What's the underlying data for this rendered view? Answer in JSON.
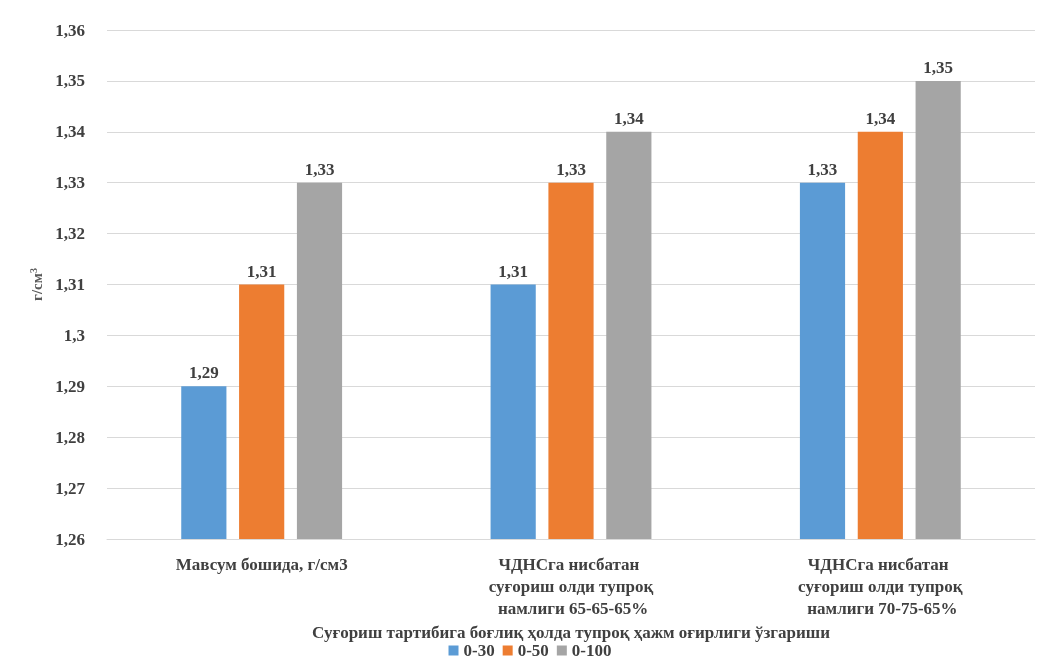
{
  "chart_data": {
    "type": "bar",
    "xlabel": "Суғориш тартибига боғлиқ ҳолда тупроқ ҳажм оғирлиги ўзгариши",
    "ylabel": "г/см$^{3}$",
    "categories": [
      "Мавсум бошида, г/см3",
      "ЧДНСга нисбатан суғориш олди тупроқ намлиги 65-65-65%",
      "ЧДНСга нисбатан суғориш олди тупроқ намлиги 70-75-65%"
    ],
    "series": [
      {
        "name": "0-30",
        "color": "#5b9bd5",
        "values": [
          1.29,
          1.31,
          1.33
        ],
        "value_labels": [
          "1,29",
          "1,31",
          "1,33"
        ]
      },
      {
        "name": "0-50",
        "color": "#ed7d31",
        "values": [
          1.31,
          1.33,
          1.34
        ],
        "value_labels": [
          "1,31",
          "1,33",
          "1,34"
        ]
      },
      {
        "name": "0-100",
        "color": "#a5a5a5",
        "values": [
          1.33,
          1.34,
          1.35
        ],
        "value_labels": [
          "1,33",
          "1,34",
          "1,35"
        ]
      }
    ],
    "ylim": [
      1.26,
      1.36
    ],
    "yticks": [
      {
        "value": 1.26,
        "label": "1,26"
      },
      {
        "value": 1.27,
        "label": "1,27"
      },
      {
        "value": 1.28,
        "label": "1,28"
      },
      {
        "value": 1.29,
        "label": "1,29"
      },
      {
        "value": 1.3,
        "label": "1,3"
      },
      {
        "value": 1.31,
        "label": "1,31"
      },
      {
        "value": 1.32,
        "label": "1,32"
      },
      {
        "value": 1.33,
        "label": "1,33"
      },
      {
        "value": 1.34,
        "label": "1,34"
      },
      {
        "value": 1.35,
        "label": "1,35"
      },
      {
        "value": 1.36,
        "label": "1,36"
      }
    ],
    "grid": "y",
    "legend": "bottom"
  }
}
